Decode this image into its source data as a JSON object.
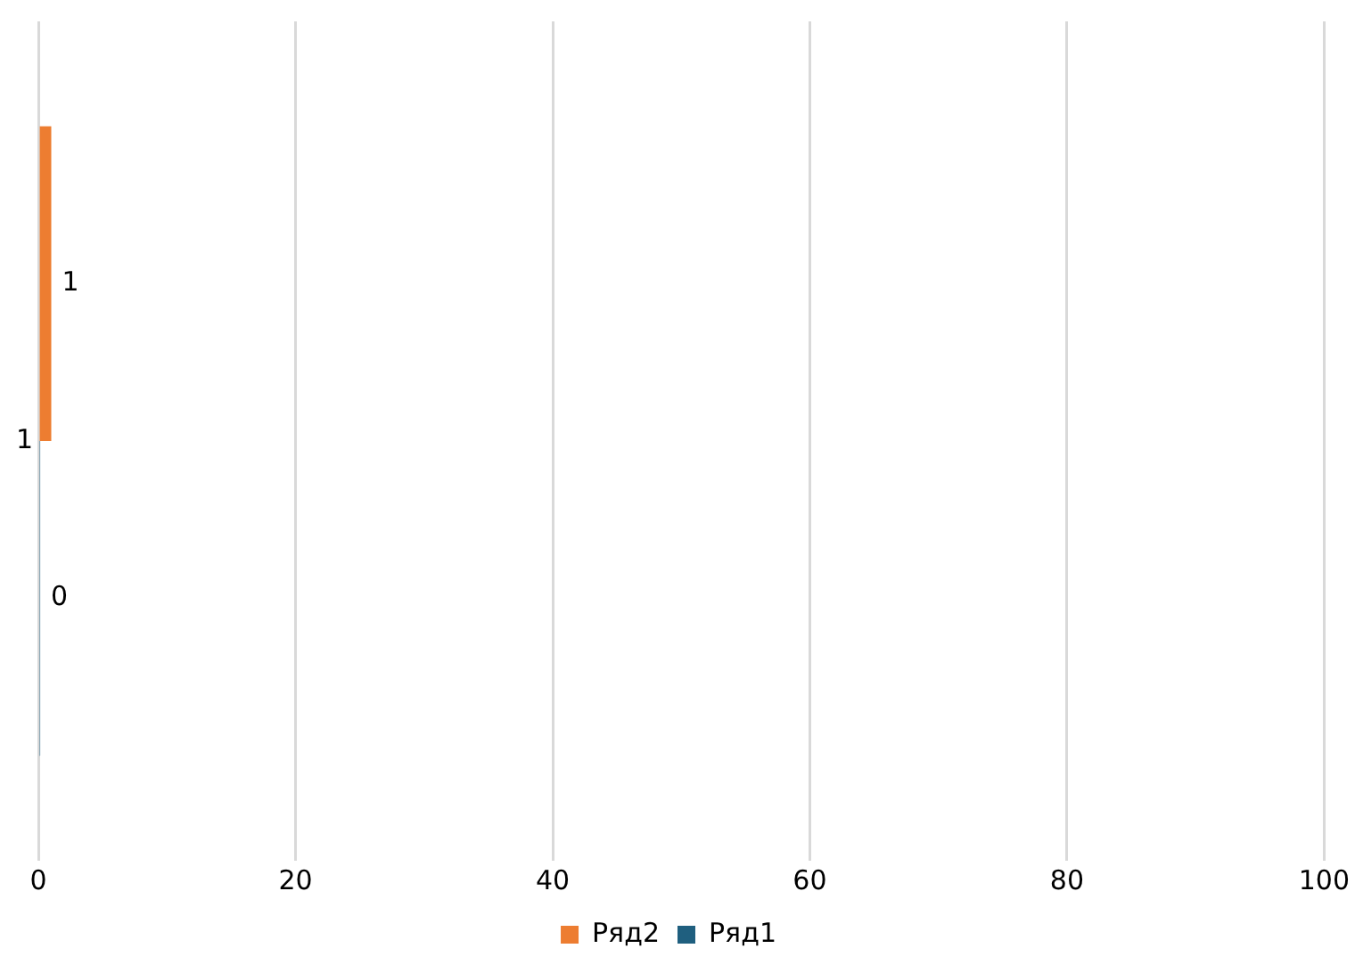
{
  "chart_data": {
    "type": "bar",
    "orientation": "horizontal",
    "categories": [
      "1"
    ],
    "series": [
      {
        "name": "Ряд2",
        "color": "#ed7d31",
        "values": [
          1
        ]
      },
      {
        "name": "Ряд1",
        "color": "#1f5f7f",
        "values": [
          0
        ]
      }
    ],
    "xlim": [
      0,
      100
    ],
    "xticks": [
      0,
      20,
      40,
      60,
      80,
      100
    ],
    "grid": "x",
    "legend": "bottom",
    "data_labels": true
  }
}
